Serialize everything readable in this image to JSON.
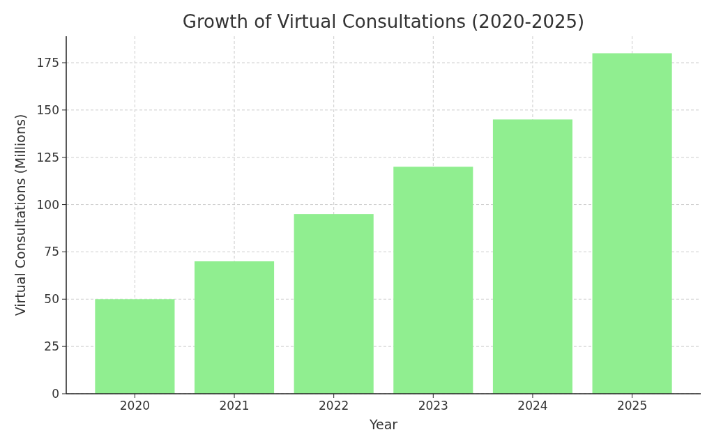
{
  "chart_data": {
    "type": "bar",
    "title": "Growth of Virtual Consultations (2020-2025)",
    "xlabel": "Year",
    "ylabel": "Virtual Consultations (Millions)",
    "categories": [
      "2020",
      "2021",
      "2022",
      "2023",
      "2024",
      "2025"
    ],
    "values": [
      50,
      70,
      95,
      120,
      145,
      180
    ],
    "color": "#90ee90",
    "ylim": [
      0,
      189
    ],
    "yticks": [
      0,
      25,
      50,
      75,
      100,
      125,
      150,
      175
    ],
    "grid": true
  }
}
